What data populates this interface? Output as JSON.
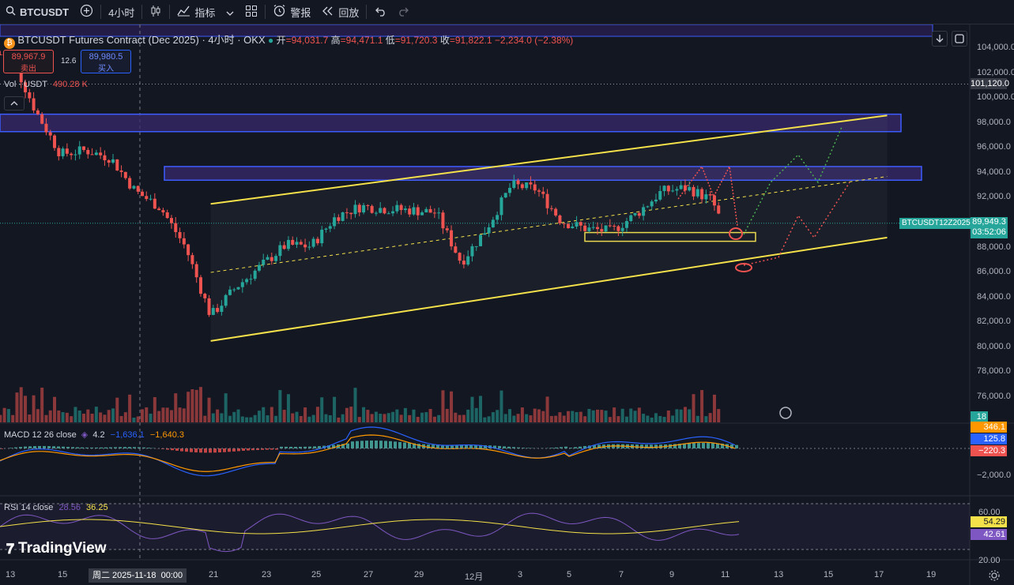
{
  "toolbar": {
    "symbol": "BTCUSDT",
    "interval": "4小时",
    "indicators_label": "指标",
    "alert_label": "警报",
    "replay_label": "回放"
  },
  "legend": {
    "title": "BTCUSDT Futures Contract (Dec 2025) · 4小时 · OKX",
    "open_label": "开",
    "open": "=94,031.7",
    "high_label": "高",
    "high": "=94,471.1",
    "low_label": "低",
    "low": "=91,720.3",
    "close_label": "收",
    "close": "=91,822.1",
    "change": "−2,234.0 (−2.38%)",
    "sell_price": "89,967.9",
    "sell_label": "卖出",
    "spread": "12.6",
    "buy_price": "89,980.5",
    "buy_label": "买入",
    "vol_label": "Vol · USDT",
    "vol_value": "490.28 K",
    "macd_label": "MACD 12 26 close",
    "macd_v1": "4.2",
    "macd_v2": "−1,636.1",
    "macd_v3": "−1,640.3",
    "rsi_label": "RSI 14 close",
    "rsi_v1": "28.56",
    "rsi_v2": "36.25"
  },
  "price_axis": {
    "ticks": [
      "104,000.0",
      "102,000.0",
      "100,000.0",
      "98,000.0",
      "96,000.0",
      "94,000.0",
      "92,000.0",
      "88,000.0",
      "86,000.0",
      "84,000.0",
      "82,000.0",
      "80,000.0",
      "78,000.0",
      "76,000.0"
    ],
    "dotted_level_label": "101,120.0",
    "symbol_tag": "BTCUSDT12Z2025",
    "last_price": "89,949.3",
    "countdown": "03:52:06",
    "vol_tag": "18",
    "macd_tags": [
      "346.1",
      "125.8",
      "−220.3"
    ],
    "macd_tick": "−2,000.0",
    "rsi_ticks": [
      "60.00",
      "20.00"
    ],
    "rsi_tags": [
      "54.29",
      "42.61"
    ]
  },
  "time_axis": {
    "labels": [
      "13",
      "15",
      "17",
      "21",
      "23",
      "25",
      "27",
      "29",
      "12月",
      "3",
      "5",
      "7",
      "9",
      "11",
      "13",
      "15",
      "17",
      "19"
    ],
    "crosshair_label": "周二 2025-11-18",
    "crosshair_time": "00:00"
  },
  "watermark": "TradingView",
  "colors": {
    "up": "#26a69a",
    "down": "#ef5350",
    "channel": "#f5e14a",
    "zone_border": "#3d5cff",
    "zone_fill": "#3a2a6e",
    "macd_line": "#2962ff",
    "signal_line": "#ff9800",
    "rsi_line": "#7e57c2",
    "rsi_ma": "#f5e14a"
  },
  "chart_data": {
    "type": "candlestick",
    "symbol": "BTCUSDT",
    "price_range": [
      73500,
      105500
    ],
    "approx_close_path": [
      [
        "11-13",
        103500
      ],
      [
        "11-14",
        99000
      ],
      [
        "11-15",
        95500
      ],
      [
        "11-16",
        95800
      ],
      [
        "11-17",
        95200
      ],
      [
        "11-18",
        92500
      ],
      [
        "11-19",
        91200
      ],
      [
        "11-20",
        88000
      ],
      [
        "11-21",
        82500
      ],
      [
        "11-22",
        84800
      ],
      [
        "11-23",
        86500
      ],
      [
        "11-24",
        88200
      ],
      [
        "11-25",
        88100
      ],
      [
        "11-26",
        90500
      ],
      [
        "11-27",
        91300
      ],
      [
        "11-28",
        91100
      ],
      [
        "11-29",
        91000
      ],
      [
        "11-30",
        90800
      ],
      [
        "12-01",
        86800
      ],
      [
        "12-02",
        89500
      ],
      [
        "12-03",
        93000
      ],
      [
        "12-04",
        92700
      ],
      [
        "12-05",
        90100
      ],
      [
        "12-06",
        89500
      ],
      [
        "12-07",
        89300
      ],
      [
        "12-08",
        90700
      ],
      [
        "12-09",
        92500
      ],
      [
        "12-10",
        92800
      ],
      [
        "12-11",
        91800
      ],
      [
        "12-11",
        89949.3
      ]
    ],
    "horizontal_levels": [
      101120
    ],
    "zones": [
      [
        97300,
        98700
      ],
      [
        93400,
        94500
      ],
      [
        88500,
        89200
      ]
    ],
    "channel_upper": [
      [
        "11-21",
        91500
      ],
      [
        "12-18",
        98600
      ]
    ],
    "channel_lower": [
      [
        "11-21",
        80500
      ],
      [
        "12-18",
        88800
      ]
    ]
  }
}
